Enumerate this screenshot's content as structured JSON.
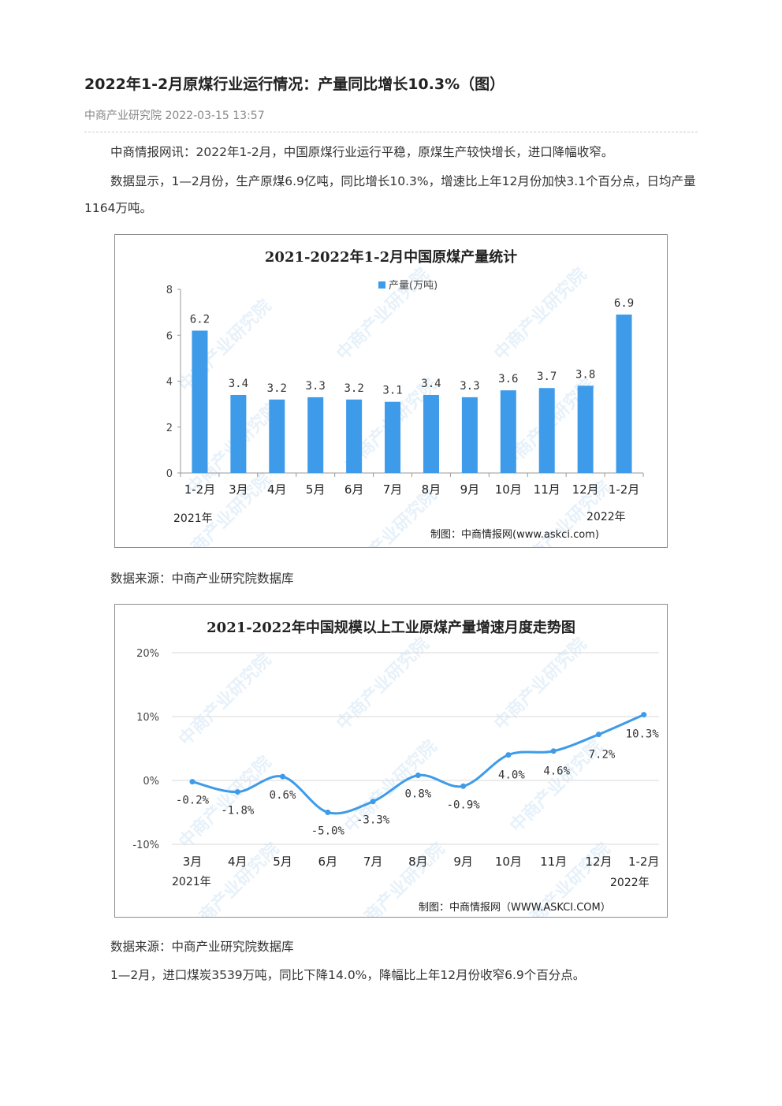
{
  "article": {
    "title": "2022年1-2月原煤行业运行情况：产量同比增长10.3%（图）",
    "meta": "中商产业研究院 2022-03-15 13:57",
    "para1": "中商情报网讯：2022年1-2月，中国原煤行业运行平稳，原煤生产较快增长，进口降幅收窄。",
    "para2": "数据显示，1—2月份，生产原煤6.9亿吨，同比增长10.3%，增速比上年12月份加快3.1个百分点，日均产量1164万吨。",
    "source1": "数据来源：中商产业研究院数据库",
    "source2": "数据来源：中商产业研究院数据库",
    "para3": "1—2月，进口煤炭3539万吨，同比下降14.0%，降幅比上年12月份收窄6.9个百分点。"
  },
  "watermark": "中商产业研究院",
  "chart_data": [
    {
      "type": "bar",
      "title": "2021-2022年1-2月中国原煤产量统计",
      "legend": "产量(万吨)",
      "legend_position": "top-center",
      "categories": [
        "1-2月",
        "3月",
        "4月",
        "5月",
        "6月",
        "7月",
        "8月",
        "9月",
        "10月",
        "11月",
        "12月",
        "1-2月"
      ],
      "values": [
        6.2,
        3.4,
        3.2,
        3.3,
        3.2,
        3.1,
        3.4,
        3.3,
        3.6,
        3.7,
        3.8,
        6.9
      ],
      "value_labels": [
        "6.2",
        "3.4",
        "3.2",
        "3.3",
        "3.2",
        "3.1",
        "3.4",
        "3.3",
        "3.6",
        "3.7",
        "3.8",
        "6.9"
      ],
      "ylim": [
        0,
        8
      ],
      "yticks": [
        "0",
        "2",
        "4",
        "6",
        "8"
      ],
      "year_start": "2021年",
      "year_end": "2022年",
      "credit": "制图：中商情报网(www.askci.com)",
      "color": "#3d9be9"
    },
    {
      "type": "line",
      "title": "2021-2022年中国规模以上工业原煤产量增速月度走势图",
      "categories": [
        "3月",
        "4月",
        "5月",
        "6月",
        "7月",
        "8月",
        "9月",
        "10月",
        "11月",
        "12月",
        "1-2月"
      ],
      "values": [
        -0.2,
        -1.8,
        0.6,
        -5.0,
        -3.3,
        0.8,
        -0.9,
        4.0,
        4.6,
        7.2,
        10.3
      ],
      "value_labels": [
        "-0.2%",
        "-1.8%",
        "0.6%",
        "-5.0%",
        "-3.3%",
        "0.8%",
        "-0.9%",
        "4.0%",
        "4.6%",
        "7.2%",
        "10.3%"
      ],
      "ylim": [
        -10,
        20
      ],
      "yticks": [
        "-10%",
        "0%",
        "10%",
        "20%"
      ],
      "grid": true,
      "year_start": "2021年",
      "year_end": "2022年",
      "credit": "制图：中商情报网（WWW.ASKCI.COM）",
      "color": "#3d9be9"
    }
  ]
}
